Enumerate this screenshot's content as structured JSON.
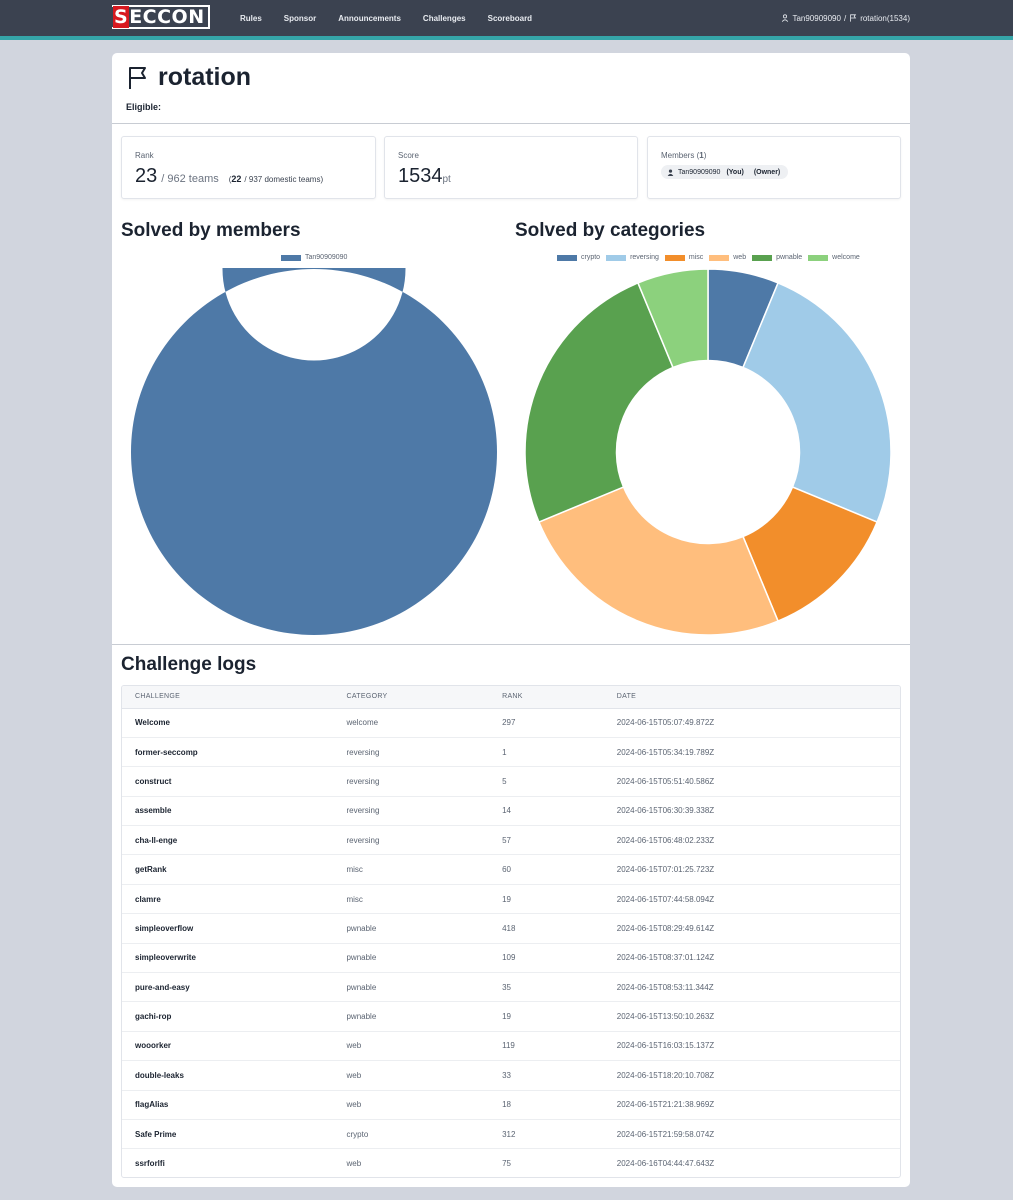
{
  "nav": {
    "logo": "SECCON",
    "links": [
      "Rules",
      "Sponsor",
      "Announcements",
      "Challenges",
      "Scoreboard"
    ],
    "user": "Tan90909090",
    "separator": "/",
    "team": "rotation(1534)"
  },
  "team": {
    "name": "rotation",
    "eligible_label": "Eligible:"
  },
  "stats": {
    "rank_label": "Rank",
    "rank": "23",
    "rank_total": "/ 962 teams",
    "domestic_open": "(",
    "domestic_rank": "22",
    "domestic_total": "/ 937 domestic teams)",
    "score_label": "Score",
    "score": "1534",
    "score_unit": "pt",
    "members_label": "Members (",
    "members_count": "1",
    "members_close": ")",
    "member_name": "Tan90909090",
    "member_you": "(You)",
    "member_owner": "(Owner)"
  },
  "sections": {
    "members_title": "Solved by members",
    "categories_title": "Solved by categories",
    "logs_title": "Challenge logs"
  },
  "chart_data": [
    {
      "type": "pie",
      "title": "Solved by members",
      "categories": [
        "Tan90909090"
      ],
      "values": [
        16
      ],
      "colors": [
        "#4e79a7"
      ]
    },
    {
      "type": "pie",
      "title": "Solved by categories",
      "categories": [
        "crypto",
        "reversing",
        "misc",
        "web",
        "pwnable",
        "welcome"
      ],
      "values": [
        1,
        4,
        2,
        4,
        4,
        1
      ],
      "colors": [
        "#4e79a7",
        "#a0cbe8",
        "#f28e2b",
        "#ffbe7d",
        "#59a14f",
        "#8cd17d"
      ]
    }
  ],
  "table": {
    "headers": [
      "CHALLENGE",
      "CATEGORY",
      "RANK",
      "DATE"
    ],
    "rows": [
      [
        "Welcome",
        "welcome",
        "297",
        "2024-06-15T05:07:49.872Z"
      ],
      [
        "former-seccomp",
        "reversing",
        "1",
        "2024-06-15T05:34:19.789Z"
      ],
      [
        "construct",
        "reversing",
        "5",
        "2024-06-15T05:51:40.586Z"
      ],
      [
        "assemble",
        "reversing",
        "14",
        "2024-06-15T06:30:39.338Z"
      ],
      [
        "cha-ll-enge",
        "reversing",
        "57",
        "2024-06-15T06:48:02.233Z"
      ],
      [
        "getRank",
        "misc",
        "60",
        "2024-06-15T07:01:25.723Z"
      ],
      [
        "clamre",
        "misc",
        "19",
        "2024-06-15T07:44:58.094Z"
      ],
      [
        "simpleoverflow",
        "pwnable",
        "418",
        "2024-06-15T08:29:49.614Z"
      ],
      [
        "simpleoverwrite",
        "pwnable",
        "109",
        "2024-06-15T08:37:01.124Z"
      ],
      [
        "pure-and-easy",
        "pwnable",
        "35",
        "2024-06-15T08:53:11.344Z"
      ],
      [
        "gachi-rop",
        "pwnable",
        "19",
        "2024-06-15T13:50:10.263Z"
      ],
      [
        "wooorker",
        "web",
        "119",
        "2024-06-15T16:03:15.137Z"
      ],
      [
        "double-leaks",
        "web",
        "33",
        "2024-06-15T18:20:10.708Z"
      ],
      [
        "flagAlias",
        "web",
        "18",
        "2024-06-15T21:21:38.969Z"
      ],
      [
        "Safe Prime",
        "crypto",
        "312",
        "2024-06-15T21:59:58.074Z"
      ],
      [
        "ssrforlfi",
        "web",
        "75",
        "2024-06-16T04:44:47.643Z"
      ]
    ]
  }
}
